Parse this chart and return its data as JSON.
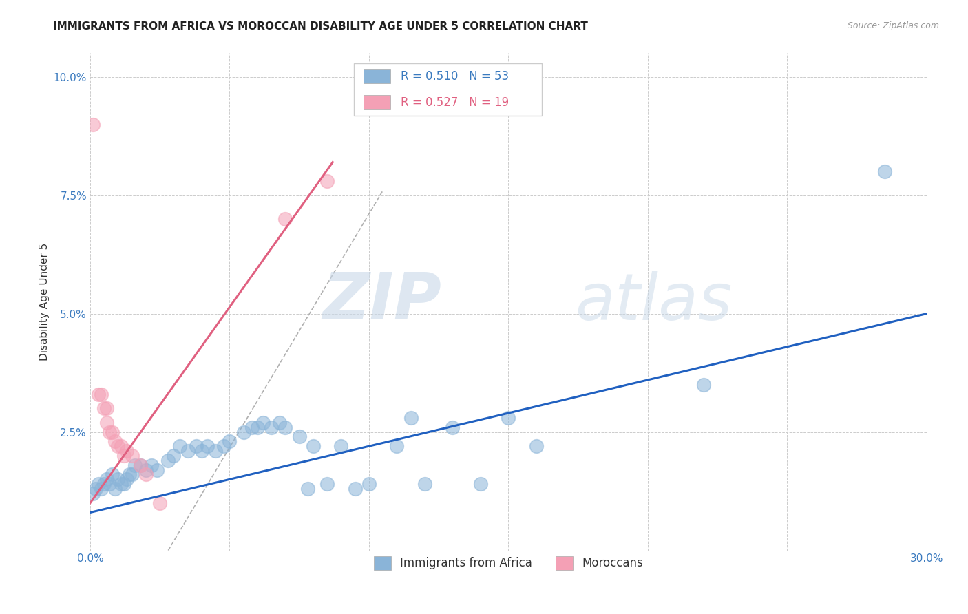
{
  "title": "IMMIGRANTS FROM AFRICA VS MOROCCAN DISABILITY AGE UNDER 5 CORRELATION CHART",
  "source": "Source: ZipAtlas.com",
  "ylabel_label": "Disability Age Under 5",
  "xlim": [
    0.0,
    0.3
  ],
  "ylim": [
    0.0,
    0.105
  ],
  "xticks": [
    0.0,
    0.05,
    0.1,
    0.15,
    0.2,
    0.25,
    0.3
  ],
  "yticks": [
    0.0,
    0.025,
    0.05,
    0.075,
    0.1
  ],
  "xtick_labels": [
    "0.0%",
    "",
    "",
    "",
    "",
    "",
    "30.0%"
  ],
  "ytick_labels": [
    "",
    "2.5%",
    "5.0%",
    "7.5%",
    "10.0%"
  ],
  "legend_blue_label": "Immigrants from Africa",
  "legend_pink_label": "Moroccans",
  "r_blue": "0.510",
  "n_blue": "53",
  "r_pink": "0.527",
  "n_pink": "19",
  "blue_scatter": [
    [
      0.001,
      0.012
    ],
    [
      0.002,
      0.013
    ],
    [
      0.003,
      0.014
    ],
    [
      0.004,
      0.013
    ],
    [
      0.005,
      0.014
    ],
    [
      0.006,
      0.015
    ],
    [
      0.007,
      0.014
    ],
    [
      0.008,
      0.016
    ],
    [
      0.009,
      0.013
    ],
    [
      0.01,
      0.015
    ],
    [
      0.011,
      0.014
    ],
    [
      0.012,
      0.014
    ],
    [
      0.013,
      0.015
    ],
    [
      0.014,
      0.016
    ],
    [
      0.015,
      0.016
    ],
    [
      0.016,
      0.018
    ],
    [
      0.018,
      0.018
    ],
    [
      0.02,
      0.017
    ],
    [
      0.022,
      0.018
    ],
    [
      0.024,
      0.017
    ],
    [
      0.028,
      0.019
    ],
    [
      0.03,
      0.02
    ],
    [
      0.032,
      0.022
    ],
    [
      0.035,
      0.021
    ],
    [
      0.038,
      0.022
    ],
    [
      0.04,
      0.021
    ],
    [
      0.042,
      0.022
    ],
    [
      0.045,
      0.021
    ],
    [
      0.048,
      0.022
    ],
    [
      0.05,
      0.023
    ],
    [
      0.055,
      0.025
    ],
    [
      0.058,
      0.026
    ],
    [
      0.06,
      0.026
    ],
    [
      0.062,
      0.027
    ],
    [
      0.065,
      0.026
    ],
    [
      0.068,
      0.027
    ],
    [
      0.07,
      0.026
    ],
    [
      0.075,
      0.024
    ],
    [
      0.078,
      0.013
    ],
    [
      0.08,
      0.022
    ],
    [
      0.085,
      0.014
    ],
    [
      0.09,
      0.022
    ],
    [
      0.095,
      0.013
    ],
    [
      0.1,
      0.014
    ],
    [
      0.11,
      0.022
    ],
    [
      0.115,
      0.028
    ],
    [
      0.12,
      0.014
    ],
    [
      0.13,
      0.026
    ],
    [
      0.14,
      0.014
    ],
    [
      0.15,
      0.028
    ],
    [
      0.16,
      0.022
    ],
    [
      0.22,
      0.035
    ],
    [
      0.285,
      0.08
    ]
  ],
  "pink_scatter": [
    [
      0.001,
      0.09
    ],
    [
      0.003,
      0.033
    ],
    [
      0.004,
      0.033
    ],
    [
      0.005,
      0.03
    ],
    [
      0.006,
      0.03
    ],
    [
      0.006,
      0.027
    ],
    [
      0.007,
      0.025
    ],
    [
      0.008,
      0.025
    ],
    [
      0.009,
      0.023
    ],
    [
      0.01,
      0.022
    ],
    [
      0.011,
      0.022
    ],
    [
      0.012,
      0.02
    ],
    [
      0.013,
      0.021
    ],
    [
      0.015,
      0.02
    ],
    [
      0.018,
      0.018
    ],
    [
      0.02,
      0.016
    ],
    [
      0.025,
      0.01
    ],
    [
      0.07,
      0.07
    ],
    [
      0.085,
      0.078
    ]
  ],
  "blue_line_x": [
    0.0,
    0.3
  ],
  "blue_line_y": [
    0.008,
    0.05
  ],
  "pink_line_x": [
    0.0,
    0.087
  ],
  "pink_line_y": [
    0.01,
    0.082
  ],
  "diag_line_x": [
    0.028,
    0.105
  ],
  "diag_line_y": [
    0.0,
    0.076
  ],
  "scatter_color_blue": "#8ab4d8",
  "scatter_color_pink": "#f4a0b5",
  "line_color_blue": "#2060c0",
  "line_color_pink": "#e06080",
  "line_color_diag": "#b0b0b0",
  "background_color": "#ffffff",
  "watermark": "ZIPatlas",
  "title_fontsize": 11,
  "axis_label_fontsize": 11,
  "tick_fontsize": 11
}
